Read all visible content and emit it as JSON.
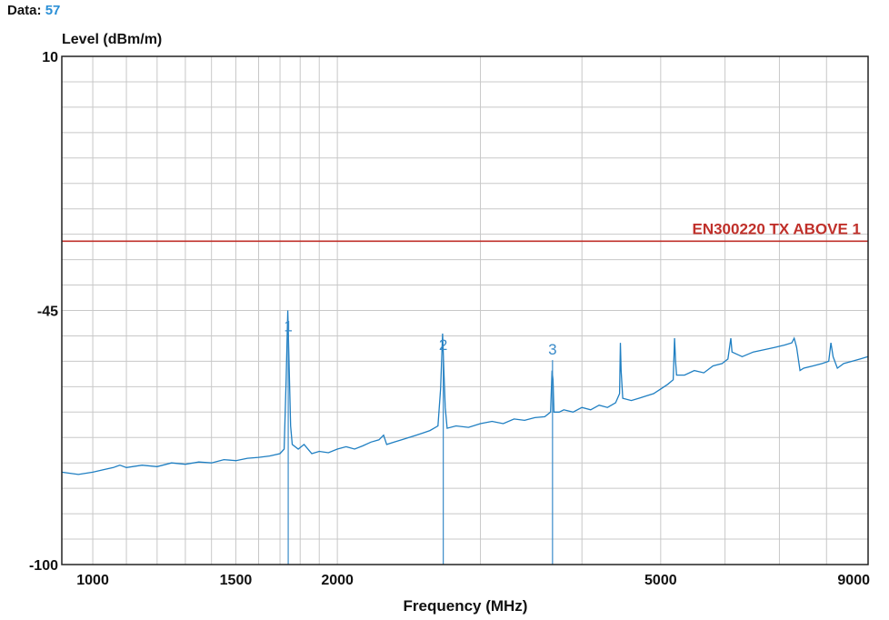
{
  "header": {
    "data_label": "Data:",
    "data_value": "57"
  },
  "colors": {
    "trace": "#1f7fc2",
    "limit": "#c0302a",
    "grid": "#c8c8c8",
    "frame": "#222222",
    "marker": "#3a8bc9"
  },
  "chart_data": {
    "type": "line",
    "xscale": "log",
    "ylabel": "Level (dBm/m)",
    "xlabel": "Frequency (MHz)",
    "xlim": [
      916,
      9000
    ],
    "ylim": [
      -100,
      10
    ],
    "grid": true,
    "yticks": [
      10,
      -45,
      -100
    ],
    "ytick_labels": [
      "10",
      "-45",
      "-100"
    ],
    "xticks": [
      1000,
      1500,
      2000,
      5000,
      9000
    ],
    "xtick_labels": [
      "1000",
      "1500",
      "2000",
      "5000",
      "9000"
    ],
    "limit_line": {
      "label": "EN300220  TX ABOVE 1",
      "value": -30
    },
    "markers": [
      {
        "label": "1",
        "x": 1740,
        "y": -48
      },
      {
        "label": "2",
        "x": 2700,
        "y": -52
      },
      {
        "label": "3",
        "x": 3680,
        "y": -53
      }
    ],
    "series": [
      {
        "values": [
          [
            916,
            -80
          ],
          [
            960,
            -80.5
          ],
          [
            1000,
            -80
          ],
          [
            1030,
            -79.5
          ],
          [
            1060,
            -79
          ],
          [
            1080,
            -78.5
          ],
          [
            1100,
            -79
          ],
          [
            1150,
            -78.5
          ],
          [
            1200,
            -78.8
          ],
          [
            1250,
            -78
          ],
          [
            1300,
            -78.3
          ],
          [
            1350,
            -77.8
          ],
          [
            1400,
            -78
          ],
          [
            1450,
            -77.3
          ],
          [
            1500,
            -77.5
          ],
          [
            1550,
            -77
          ],
          [
            1600,
            -76.8
          ],
          [
            1650,
            -76.5
          ],
          [
            1700,
            -76
          ],
          [
            1720,
            -75
          ],
          [
            1730,
            -60
          ],
          [
            1738,
            -45
          ],
          [
            1745,
            -58
          ],
          [
            1752,
            -70
          ],
          [
            1760,
            -74
          ],
          [
            1790,
            -75
          ],
          [
            1820,
            -74
          ],
          [
            1860,
            -76
          ],
          [
            1900,
            -75.5
          ],
          [
            1950,
            -75.8
          ],
          [
            2000,
            -75
          ],
          [
            2050,
            -74.5
          ],
          [
            2100,
            -75
          ],
          [
            2150,
            -74.3
          ],
          [
            2200,
            -73.5
          ],
          [
            2250,
            -73
          ],
          [
            2280,
            -72
          ],
          [
            2300,
            -74
          ],
          [
            2350,
            -73.5
          ],
          [
            2400,
            -73
          ],
          [
            2450,
            -72.5
          ],
          [
            2500,
            -72
          ],
          [
            2550,
            -71.5
          ],
          [
            2600,
            -71
          ],
          [
            2660,
            -70
          ],
          [
            2680,
            -62
          ],
          [
            2695,
            -50
          ],
          [
            2705,
            -58
          ],
          [
            2715,
            -66
          ],
          [
            2730,
            -70.5
          ],
          [
            2800,
            -70
          ],
          [
            2900,
            -70.3
          ],
          [
            3000,
            -69.5
          ],
          [
            3100,
            -69
          ],
          [
            3200,
            -69.5
          ],
          [
            3300,
            -68.5
          ],
          [
            3400,
            -68.8
          ],
          [
            3500,
            -68.2
          ],
          [
            3600,
            -68
          ],
          [
            3660,
            -67
          ],
          [
            3675,
            -58
          ],
          [
            3685,
            -60
          ],
          [
            3695,
            -67
          ],
          [
            3750,
            -67
          ],
          [
            3800,
            -66.5
          ],
          [
            3900,
            -67
          ],
          [
            4000,
            -66
          ],
          [
            4100,
            -66.5
          ],
          [
            4200,
            -65.5
          ],
          [
            4300,
            -66
          ],
          [
            4400,
            -65
          ],
          [
            4450,
            -63
          ],
          [
            4460,
            -52
          ],
          [
            4470,
            -58
          ],
          [
            4490,
            -64
          ],
          [
            4600,
            -64.5
          ],
          [
            4700,
            -64
          ],
          [
            4800,
            -63.5
          ],
          [
            4900,
            -63
          ],
          [
            5000,
            -62
          ],
          [
            5100,
            -61
          ],
          [
            5180,
            -60
          ],
          [
            5200,
            -51
          ],
          [
            5215,
            -56
          ],
          [
            5230,
            -59
          ],
          [
            5350,
            -59
          ],
          [
            5500,
            -58
          ],
          [
            5650,
            -58.5
          ],
          [
            5800,
            -57
          ],
          [
            5950,
            -56.5
          ],
          [
            6050,
            -55.5
          ],
          [
            6100,
            -51
          ],
          [
            6120,
            -54
          ],
          [
            6300,
            -55
          ],
          [
            6500,
            -54
          ],
          [
            6700,
            -53.5
          ],
          [
            6900,
            -53
          ],
          [
            7100,
            -52.5
          ],
          [
            7250,
            -52
          ],
          [
            7300,
            -51
          ],
          [
            7350,
            -53
          ],
          [
            7420,
            -58
          ],
          [
            7500,
            -57.5
          ],
          [
            7700,
            -57
          ],
          [
            7900,
            -56.5
          ],
          [
            8050,
            -56
          ],
          [
            8100,
            -52
          ],
          [
            8150,
            -55
          ],
          [
            8250,
            -57.5
          ],
          [
            8400,
            -56.5
          ],
          [
            8600,
            -56
          ],
          [
            8800,
            -55.5
          ],
          [
            9000,
            -55
          ]
        ]
      }
    ]
  }
}
